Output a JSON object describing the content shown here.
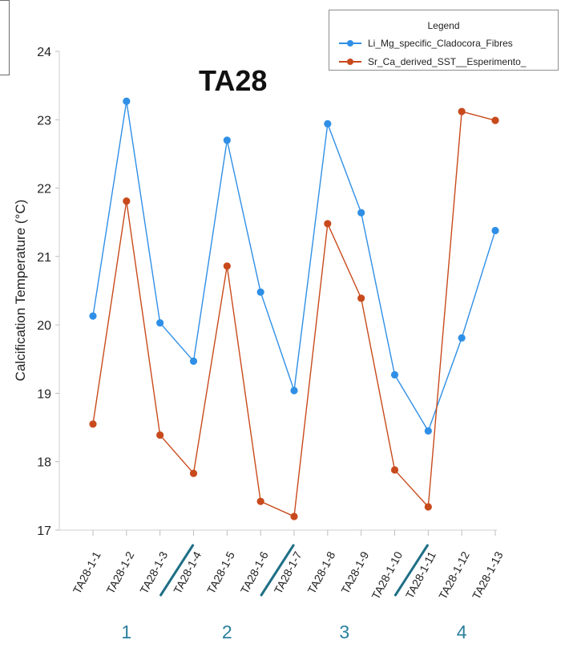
{
  "chart_data": {
    "type": "line",
    "title": "TA28",
    "ylabel": "Calcification Temperature (°C)",
    "xlabel": "",
    "ylim": [
      17,
      24
    ],
    "yticks": [
      17,
      18,
      19,
      20,
      21,
      22,
      23,
      24
    ],
    "categories": [
      "TA28-1-1",
      "TA28-1-2",
      "TA28-1-3",
      "TA28-1-4",
      "TA28-1-5",
      "TA28-1-6",
      "TA28-1-7",
      "TA28-1-8",
      "TA28-1-9",
      "TA28-1-10",
      "TA28-1-11",
      "TA28-1-12",
      "TA28-1-13"
    ],
    "series": [
      {
        "name": "Li_Mg_specific_Cladocora_Fibres",
        "color": "#2f8fe6",
        "values": [
          20.13,
          23.27,
          20.03,
          19.47,
          22.7,
          20.48,
          19.04,
          22.94,
          21.64,
          19.27,
          18.45,
          19.81,
          21.38
        ]
      },
      {
        "name": "Sr_Ca_derived_SST__Esperimento_",
        "color": "#c84a1c",
        "values": [
          18.55,
          21.81,
          18.39,
          17.83,
          20.86,
          17.42,
          17.2,
          21.48,
          20.39,
          17.88,
          17.34,
          23.12,
          22.99
        ]
      }
    ],
    "legend": {
      "title": "Legend",
      "placement": "top-right"
    },
    "grid": false,
    "groups": [
      {
        "label": "1",
        "start_index": 0,
        "end_index": 2
      },
      {
        "label": "2",
        "start_index": 3,
        "end_index": 5
      },
      {
        "label": "3",
        "start_index": 6,
        "end_index": 9
      },
      {
        "label": "4",
        "start_index": 10,
        "end_index": 12
      }
    ],
    "separators_between": [
      [
        2,
        3
      ],
      [
        5,
        6
      ],
      [
        9,
        10
      ]
    ]
  }
}
